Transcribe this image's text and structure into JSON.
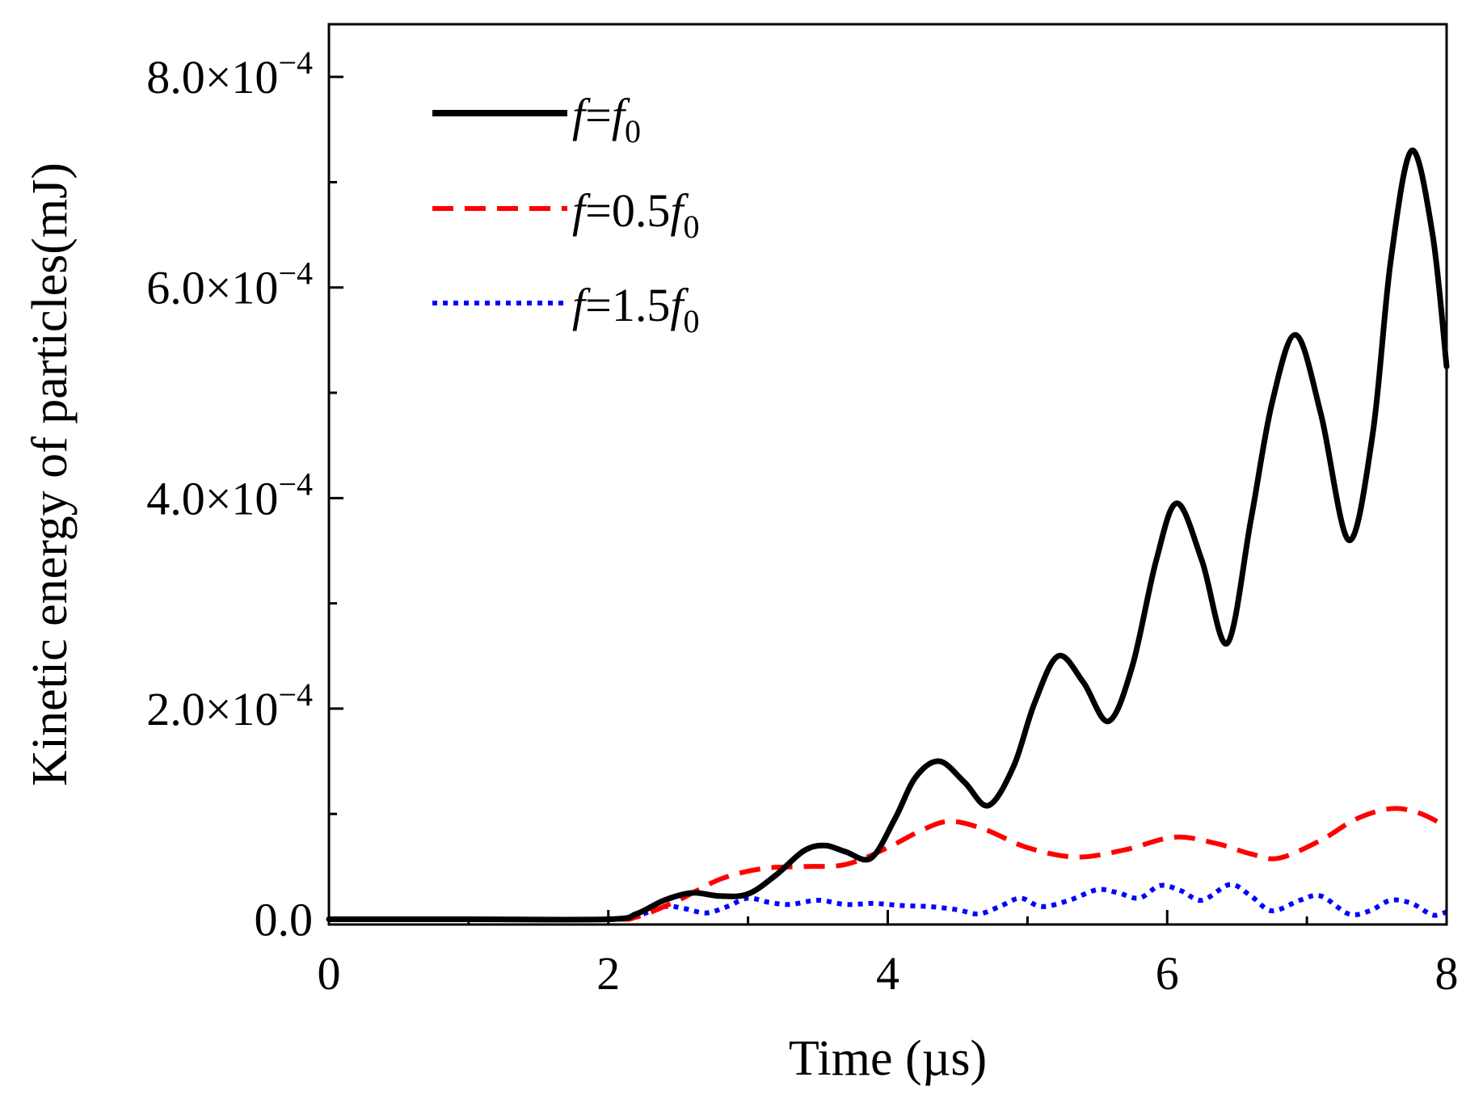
{
  "chart_data": {
    "type": "line",
    "title": "",
    "xlabel": "Time (µs)",
    "ylabel": "Kinetic energy of particles(mJ)",
    "xlim": [
      0,
      8
    ],
    "ylim": [
      -5e-06,
      0.00085
    ],
    "x_ticks": [
      {
        "value": 0,
        "label": "0"
      },
      {
        "value": 2,
        "label": "2"
      },
      {
        "value": 4,
        "label": "4"
      },
      {
        "value": 6,
        "label": "6"
      },
      {
        "value": 8,
        "label": "8"
      }
    ],
    "x_minor_ticks": [
      1,
      3,
      5,
      7
    ],
    "y_ticks": [
      {
        "value": 0,
        "mantissa": "0.0",
        "exponent": ""
      },
      {
        "value": 0.0002,
        "mantissa": "2.0×10",
        "exponent": "−4"
      },
      {
        "value": 0.0004,
        "mantissa": "4.0×10",
        "exponent": "−4"
      },
      {
        "value": 0.0006,
        "mantissa": "6.0×10",
        "exponent": "−4"
      },
      {
        "value": 0.0008,
        "mantissa": "8.0×10",
        "exponent": "−4"
      }
    ],
    "y_minor_ticks": [
      0.0001,
      0.0003,
      0.0005,
      0.0007
    ],
    "legend_position": "top-left",
    "series": [
      {
        "name": "f=f0",
        "legend": {
          "italic_a": "f",
          "mid": "=",
          "italic_b": "f",
          "sub": "0"
        },
        "color": "#000000",
        "style": "solid",
        "x": [
          0,
          1.0,
          2.0,
          2.2,
          2.4,
          2.6,
          2.8,
          3.0,
          3.2,
          3.4,
          3.55,
          3.7,
          3.88,
          4.05,
          4.2,
          4.37,
          4.55,
          4.72,
          4.9,
          5.05,
          5.22,
          5.4,
          5.58,
          5.75,
          5.92,
          6.07,
          6.25,
          6.43,
          6.6,
          6.75,
          6.92,
          7.1,
          7.3,
          7.47,
          7.6,
          7.75,
          7.9,
          8.0
        ],
        "y": [
          0,
          0,
          0,
          5e-06,
          1.8e-05,
          2.5e-05,
          2.2e-05,
          2.4e-05,
          4.2e-05,
          6.5e-05,
          7e-05,
          6.4e-05,
          5.8e-05,
          9.5e-05,
          0.000135,
          0.00015,
          0.00013,
          0.000108,
          0.000145,
          0.000205,
          0.00025,
          0.000225,
          0.000188,
          0.00024,
          0.00034,
          0.000395,
          0.00034,
          0.000262,
          0.00038,
          0.00049,
          0.000555,
          0.00048,
          0.00036,
          0.00046,
          0.000625,
          0.00073,
          0.00065,
          0.000525
        ]
      },
      {
        "name": "f=0.5f0",
        "legend": {
          "italic_a": "f",
          "mid": "=0.5",
          "italic_b": "f",
          "sub": "0"
        },
        "color": "#ff0000",
        "style": "dashed",
        "x": [
          0,
          1.0,
          2.0,
          2.2,
          2.5,
          2.8,
          3.1,
          3.4,
          3.7,
          4.0,
          4.25,
          4.45,
          4.7,
          5.0,
          5.35,
          5.7,
          6.05,
          6.35,
          6.6,
          6.8,
          7.1,
          7.35,
          7.6,
          7.8,
          8.0
        ],
        "y": [
          0,
          0,
          0,
          2e-06,
          1.8e-05,
          3.8e-05,
          4.8e-05,
          5e-05,
          5.2e-05,
          6.8e-05,
          8.5e-05,
          9.3e-05,
          8.5e-05,
          6.8e-05,
          5.9e-05,
          6.6e-05,
          7.8e-05,
          7.2e-05,
          6.2e-05,
          5.8e-05,
          7.5e-05,
          9.5e-05,
          0.000105,
          0.000101,
          8.8e-05
        ]
      },
      {
        "name": "f=1.5f0",
        "legend": {
          "italic_a": "f",
          "mid": "=1.5",
          "italic_b": "f",
          "sub": "0"
        },
        "color": "#0000ff",
        "style": "dotted",
        "x": [
          0,
          1.0,
          2.0,
          2.2,
          2.4,
          2.55,
          2.7,
          2.85,
          3.0,
          3.15,
          3.3,
          3.5,
          3.7,
          3.9,
          4.1,
          4.3,
          4.5,
          4.65,
          4.8,
          4.95,
          5.1,
          5.3,
          5.5,
          5.65,
          5.8,
          5.95,
          6.1,
          6.25,
          6.45,
          6.6,
          6.75,
          6.95,
          7.1,
          7.3,
          7.45,
          7.6,
          7.75,
          7.9,
          8.0
        ],
        "y": [
          0,
          0,
          0,
          3e-06,
          1.2e-05,
          1e-05,
          6e-06,
          1.2e-05,
          2e-05,
          1.6e-05,
          1.4e-05,
          1.8e-05,
          1.4e-05,
          1.5e-05,
          1.3e-05,
          1.2e-05,
          9e-06,
          5e-06,
          1.2e-05,
          2e-05,
          1.2e-05,
          1.8e-05,
          2.8e-05,
          2.5e-05,
          2e-05,
          3.2e-05,
          2.7e-05,
          1.8e-05,
          3.3e-05,
          2.2e-05,
          8e-06,
          1.8e-05,
          2.2e-05,
          5e-06,
          8e-06,
          1.8e-05,
          1.5e-05,
          4e-06,
          7e-06
        ]
      }
    ]
  }
}
